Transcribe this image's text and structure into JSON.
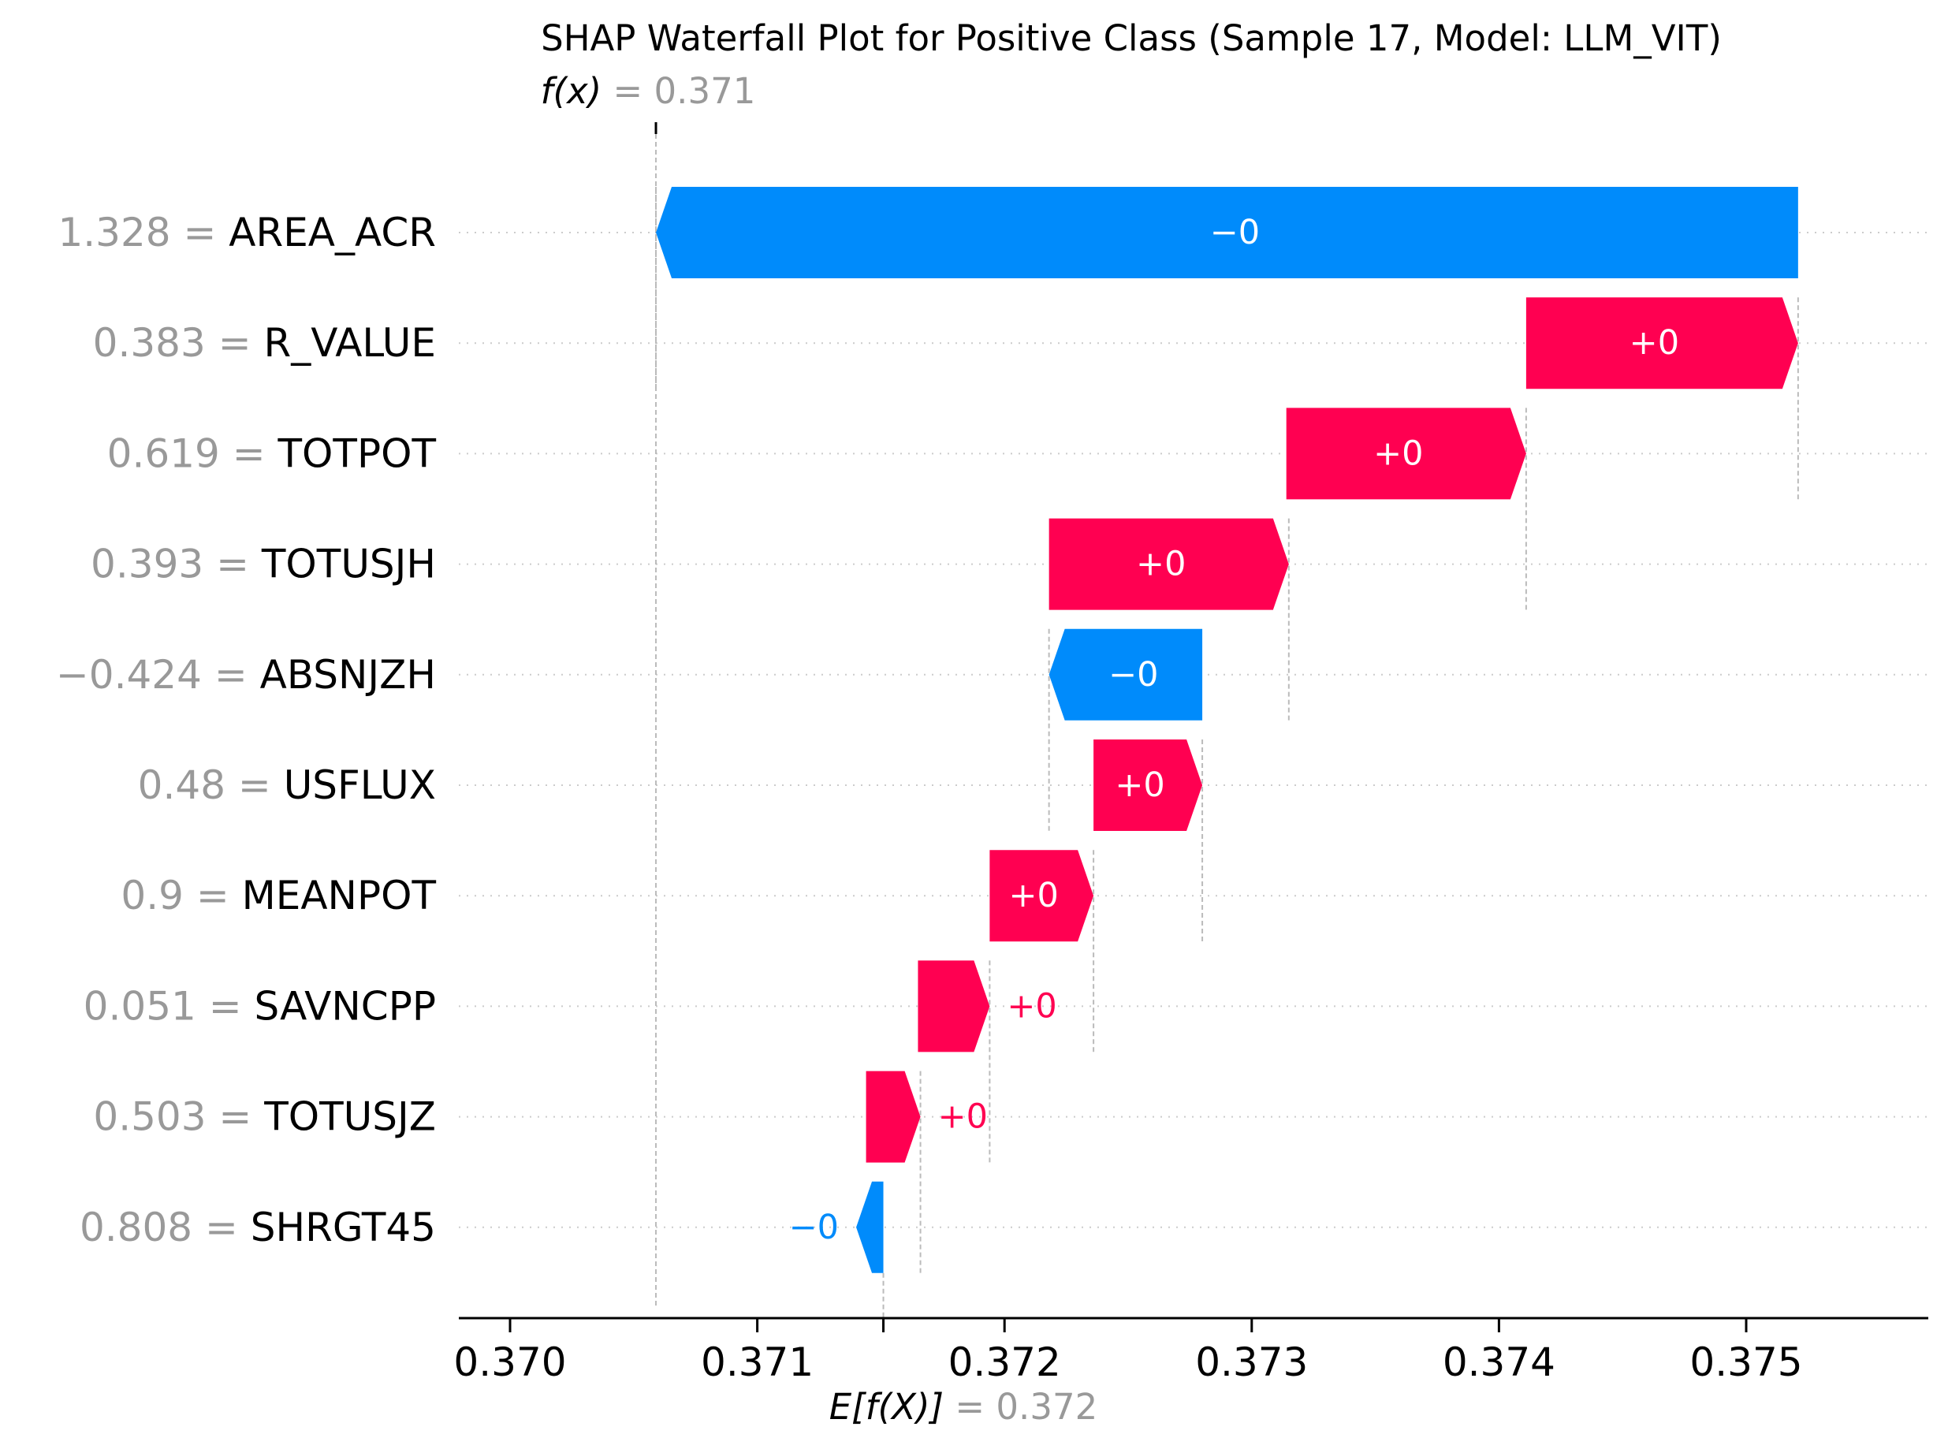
{
  "chart_data": {
    "type": "waterfall",
    "title": "SHAP Waterfall Plot for Positive Class (Sample 17, Model: LLM_VIT)",
    "fx": {
      "label": "f(x)",
      "value": "0.371",
      "x": 0.37059
    },
    "efx": {
      "label": "E[f(X)]",
      "value": "0.372",
      "x": 0.37151
    },
    "xlim": [
      0.3697,
      0.3759
    ],
    "xticks": [
      0.37,
      0.371,
      0.372,
      0.373,
      0.374,
      0.375
    ],
    "xtick_labels": [
      "0.370",
      "0.371",
      "0.372",
      "0.373",
      "0.374",
      "0.375"
    ],
    "features": [
      {
        "value": "1.328",
        "name": "AREA_ACR",
        "start": 0.37521,
        "end": 0.37059,
        "label": "−0"
      },
      {
        "value": "0.383",
        "name": "R_VALUE",
        "start": 0.37411,
        "end": 0.37521,
        "label": "+0"
      },
      {
        "value": "0.619",
        "name": "TOTPOT",
        "start": 0.37314,
        "end": 0.37411,
        "label": "+0"
      },
      {
        "value": "0.393",
        "name": "TOTUSJH",
        "start": 0.37218,
        "end": 0.37315,
        "label": "+0"
      },
      {
        "value": "−0.424",
        "name": "ABSNJZH",
        "start": 0.3728,
        "end": 0.37218,
        "label": "−0"
      },
      {
        "value": "0.48",
        "name": "USFLUX",
        "start": 0.37236,
        "end": 0.3728,
        "label": "+0"
      },
      {
        "value": "0.9",
        "name": "MEANPOT",
        "start": 0.37194,
        "end": 0.37236,
        "label": "+0"
      },
      {
        "value": "0.051",
        "name": "SAVNCPP",
        "start": 0.37165,
        "end": 0.37194,
        "label": "+0"
      },
      {
        "value": "0.503",
        "name": "TOTUSJZ",
        "start": 0.37144,
        "end": 0.37166,
        "label": "+0"
      },
      {
        "value": "0.808",
        "name": "SHRGT45",
        "start": 0.37151,
        "end": 0.3714,
        "label": "−0"
      }
    ],
    "colors": {
      "positive": "#ff0051",
      "negative": "#008bfb",
      "muted": "#999999",
      "axis": "#000000"
    }
  }
}
